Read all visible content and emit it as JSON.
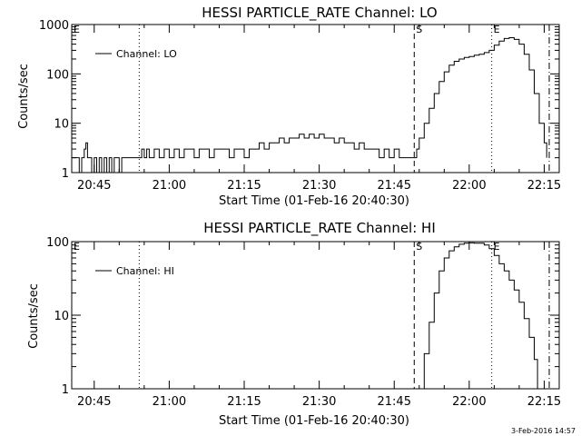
{
  "footer": {
    "timestamp": "3-Feb-2016 14:57"
  },
  "chart_data": [
    {
      "type": "line",
      "title": "HESSI PARTICLE_RATE Channel: LO",
      "xlabel": "Start Time (01-Feb-16 20:40:30)",
      "ylabel": "Counts/sec",
      "yscale": "log",
      "xlim": [
        "20:40:30",
        "22:18:00"
      ],
      "ylim": [
        1,
        1000
      ],
      "x_tick_labels": [
        "20:45",
        "21:00",
        "21:15",
        "21:30",
        "21:45",
        "22:00",
        "22:15"
      ],
      "y_tick_labels": [
        "1",
        "10",
        "100",
        "1000"
      ],
      "legend": {
        "entries": [
          "Channel: LO"
        ],
        "location": "top-left"
      },
      "markers": [
        {
          "label": "E",
          "time": "20:40:30",
          "style": "none"
        },
        {
          "label": "",
          "time": "20:54:00",
          "style": "dotted"
        },
        {
          "label": "S",
          "time": "21:49:00",
          "style": "dashed"
        },
        {
          "label": "E",
          "time": "22:04:30",
          "style": "dotted"
        },
        {
          "label": "",
          "time": "22:16:00",
          "style": "dashdot"
        }
      ],
      "series": [
        {
          "name": "Channel: LO",
          "points": [
            [
              "20:40:30",
              2
            ],
            [
              "20:41:30",
              2
            ],
            [
              "20:42:00",
              1
            ],
            [
              "20:42:30",
              2
            ],
            [
              "20:43:00",
              3
            ],
            [
              "20:43:20",
              4
            ],
            [
              "20:43:40",
              2
            ],
            [
              "20:44:00",
              2
            ],
            [
              "20:44:30",
              1
            ],
            [
              "20:45:00",
              2
            ],
            [
              "20:45:30",
              1
            ],
            [
              "20:46:00",
              2
            ],
            [
              "20:46:30",
              1
            ],
            [
              "20:47:00",
              2
            ],
            [
              "20:47:30",
              1
            ],
            [
              "20:48:00",
              2
            ],
            [
              "20:48:30",
              1
            ],
            [
              "20:49:00",
              2
            ],
            [
              "20:50:00",
              1
            ],
            [
              "20:50:30",
              2
            ],
            [
              "20:51:00",
              2
            ],
            [
              "20:52:00",
              2
            ],
            [
              "20:53:00",
              2
            ],
            [
              "20:54:00",
              2
            ],
            [
              "20:54:30",
              3
            ],
            [
              "20:55:00",
              2
            ],
            [
              "20:55:30",
              3
            ],
            [
              "20:56:00",
              2
            ],
            [
              "20:57:00",
              3
            ],
            [
              "20:58:00",
              2
            ],
            [
              "20:59:00",
              3
            ],
            [
              "21:00:00",
              2
            ],
            [
              "21:01:00",
              3
            ],
            [
              "21:02:00",
              2
            ],
            [
              "21:03:00",
              3
            ],
            [
              "21:04:00",
              3
            ],
            [
              "21:05:00",
              2
            ],
            [
              "21:06:00",
              3
            ],
            [
              "21:07:00",
              3
            ],
            [
              "21:08:00",
              2
            ],
            [
              "21:09:00",
              3
            ],
            [
              "21:10:00",
              3
            ],
            [
              "21:11:00",
              3
            ],
            [
              "21:12:00",
              2
            ],
            [
              "21:13:00",
              3
            ],
            [
              "21:14:00",
              3
            ],
            [
              "21:15:00",
              2
            ],
            [
              "21:16:00",
              3
            ],
            [
              "21:17:00",
              3
            ],
            [
              "21:18:00",
              4
            ],
            [
              "21:19:00",
              3
            ],
            [
              "21:20:00",
              4
            ],
            [
              "21:21:00",
              4
            ],
            [
              "21:22:00",
              5
            ],
            [
              "21:23:00",
              4
            ],
            [
              "21:24:00",
              5
            ],
            [
              "21:25:00",
              5
            ],
            [
              "21:26:00",
              6
            ],
            [
              "21:27:00",
              5
            ],
            [
              "21:28:00",
              6
            ],
            [
              "21:29:00",
              5
            ],
            [
              "21:30:00",
              6
            ],
            [
              "21:31:00",
              5
            ],
            [
              "21:32:00",
              5
            ],
            [
              "21:33:00",
              4
            ],
            [
              "21:34:00",
              5
            ],
            [
              "21:35:00",
              4
            ],
            [
              "21:36:00",
              4
            ],
            [
              "21:37:00",
              3
            ],
            [
              "21:38:00",
              4
            ],
            [
              "21:39:00",
              3
            ],
            [
              "21:40:00",
              3
            ],
            [
              "21:41:00",
              3
            ],
            [
              "21:42:00",
              2
            ],
            [
              "21:43:00",
              3
            ],
            [
              "21:44:00",
              2
            ],
            [
              "21:45:00",
              3
            ],
            [
              "21:46:00",
              2
            ],
            [
              "21:47:00",
              2
            ],
            [
              "21:48:00",
              2
            ],
            [
              "21:49:00",
              2
            ],
            [
              "21:49:30",
              3
            ],
            [
              "21:50:00",
              5
            ],
            [
              "21:51:00",
              10
            ],
            [
              "21:52:00",
              20
            ],
            [
              "21:53:00",
              40
            ],
            [
              "21:54:00",
              70
            ],
            [
              "21:55:00",
              110
            ],
            [
              "21:56:00",
              150
            ],
            [
              "21:57:00",
              180
            ],
            [
              "21:58:00",
              200
            ],
            [
              "21:59:00",
              215
            ],
            [
              "22:00:00",
              225
            ],
            [
              "22:01:00",
              240
            ],
            [
              "22:02:00",
              250
            ],
            [
              "22:03:00",
              270
            ],
            [
              "22:04:00",
              300
            ],
            [
              "22:05:00",
              380
            ],
            [
              "22:06:00",
              460
            ],
            [
              "22:07:00",
              520
            ],
            [
              "22:08:00",
              540
            ],
            [
              "22:09:00",
              500
            ],
            [
              "22:10:00",
              400
            ],
            [
              "22:11:00",
              250
            ],
            [
              "22:12:00",
              120
            ],
            [
              "22:13:00",
              40
            ],
            [
              "22:14:00",
              10
            ],
            [
              "22:15:00",
              4
            ],
            [
              "22:15:30",
              2
            ]
          ]
        }
      ]
    },
    {
      "type": "line",
      "title": "HESSI PARTICLE_RATE Channel: HI",
      "xlabel": "Start Time (01-Feb-16 20:40:30)",
      "ylabel": "Counts/sec",
      "yscale": "log",
      "xlim": [
        "20:40:30",
        "22:18:00"
      ],
      "ylim": [
        1,
        100
      ],
      "x_tick_labels": [
        "20:45",
        "21:00",
        "21:15",
        "21:30",
        "21:45",
        "22:00",
        "22:15"
      ],
      "y_tick_labels": [
        "1",
        "10",
        "100"
      ],
      "legend": {
        "entries": [
          "Channel: HI"
        ],
        "location": "top-left"
      },
      "markers": [
        {
          "label": "E",
          "time": "20:40:30",
          "style": "none"
        },
        {
          "label": "",
          "time": "20:54:00",
          "style": "dotted"
        },
        {
          "label": "S",
          "time": "21:49:00",
          "style": "dashed"
        },
        {
          "label": "E",
          "time": "22:04:30",
          "style": "dotted"
        },
        {
          "label": "",
          "time": "22:16:00",
          "style": "dashdot"
        }
      ],
      "series": [
        {
          "name": "Channel: HI",
          "points": [
            [
              "21:50:20",
              1
            ],
            [
              "21:51:00",
              3
            ],
            [
              "21:52:00",
              8
            ],
            [
              "21:53:00",
              20
            ],
            [
              "21:54:00",
              40
            ],
            [
              "21:55:00",
              60
            ],
            [
              "21:56:00",
              75
            ],
            [
              "21:57:00",
              85
            ],
            [
              "21:58:00",
              92
            ],
            [
              "21:59:00",
              95
            ],
            [
              "22:00:00",
              96
            ],
            [
              "22:01:00",
              95
            ],
            [
              "22:02:00",
              95
            ],
            [
              "22:03:00",
              90
            ],
            [
              "22:04:00",
              80
            ],
            [
              "22:05:00",
              65
            ],
            [
              "22:06:00",
              50
            ],
            [
              "22:07:00",
              40
            ],
            [
              "22:08:00",
              30
            ],
            [
              "22:09:00",
              22
            ],
            [
              "22:10:00",
              15
            ],
            [
              "22:11:00",
              9
            ],
            [
              "22:12:00",
              5
            ],
            [
              "22:13:00",
              2.5
            ],
            [
              "22:13:40",
              1
            ]
          ]
        }
      ]
    }
  ]
}
